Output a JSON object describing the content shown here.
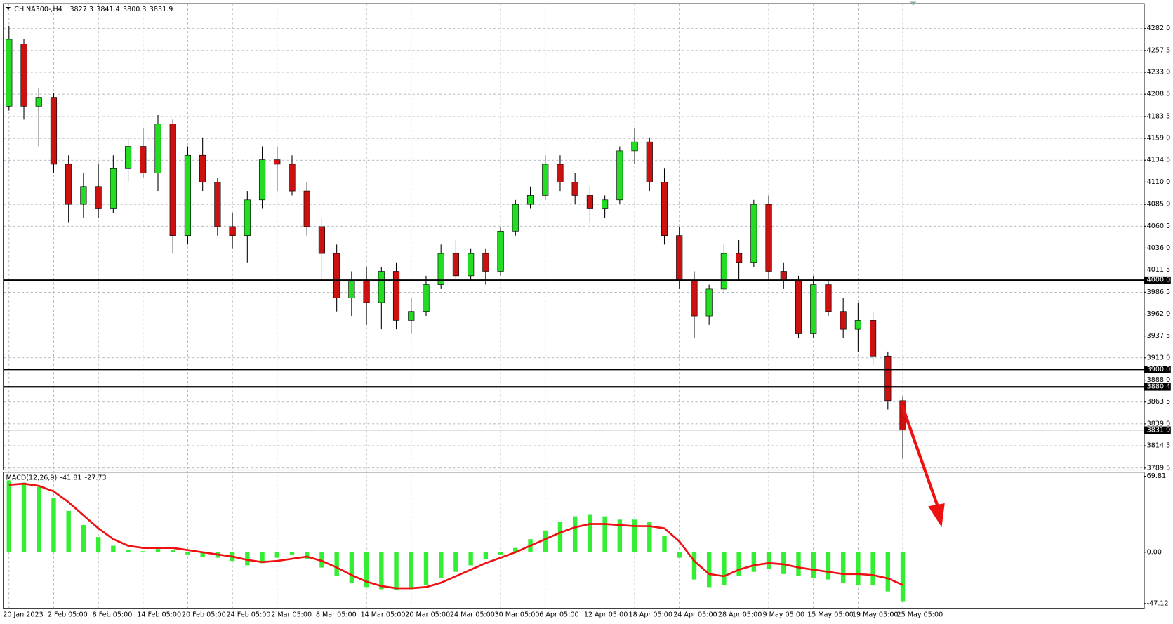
{
  "chart_data": [
    {
      "type": "candlestick",
      "title": "CHINA300-,H4",
      "header_values": [
        3827.3,
        3841.4,
        3800.3,
        3831.9
      ],
      "categories": [
        "20 Jan 2023",
        null,
        null,
        "2 Feb 05:00",
        null,
        null,
        "8 Feb 05:00",
        null,
        null,
        "14 Feb 05:00",
        null,
        null,
        "20 Feb 05:00",
        null,
        null,
        "24 Feb 05:00",
        null,
        null,
        "2 Mar 05:00",
        null,
        null,
        "8 Mar 05:00",
        null,
        null,
        "14 Mar 05:00",
        null,
        null,
        "20 Mar 05:00",
        null,
        null,
        "24 Mar 05:00",
        null,
        null,
        "30 Mar 05:00",
        null,
        null,
        "6 Apr 05:00",
        null,
        null,
        "12 Apr 05:00",
        null,
        null,
        "18 Apr 05:00",
        null,
        null,
        "24 Apr 05:00",
        null,
        null,
        "28 Apr 05:00",
        null,
        null,
        "9 May 05:00",
        null,
        null,
        "15 May 05:00",
        null,
        null,
        "19 May 05:00",
        null,
        null,
        "25 May 05:00"
      ],
      "open": [
        4195,
        4265,
        4195,
        4205,
        4130,
        4085,
        4105,
        4080,
        4125,
        4150,
        4120,
        4175,
        4050,
        4140,
        4110,
        4060,
        4050,
        4090,
        4135,
        4130,
        4100,
        4060,
        4030,
        3980,
        4000,
        3975,
        4010,
        3955,
        3965,
        3995,
        4030,
        4005,
        4030,
        4010,
        4055,
        4085,
        4095,
        4130,
        4110,
        4095,
        4080,
        4090,
        4145,
        4155,
        4110,
        4050,
        4000,
        3960,
        3990,
        4030,
        4020,
        4085,
        4010,
        4000,
        3940,
        3995,
        3965,
        3945,
        3955,
        3915,
        3865
      ],
      "high": [
        4285,
        4270,
        4215,
        4210,
        4140,
        4120,
        4130,
        4140,
        4160,
        4170,
        4185,
        4180,
        4150,
        4160,
        4115,
        4075,
        4100,
        4150,
        4150,
        4140,
        4110,
        4070,
        4040,
        4010,
        4015,
        4015,
        4020,
        3980,
        4005,
        4040,
        4045,
        4035,
        4035,
        4060,
        4090,
        4105,
        4140,
        4140,
        4120,
        4105,
        4095,
        4150,
        4170,
        4160,
        4125,
        4060,
        4010,
        3995,
        4040,
        4045,
        4090,
        4095,
        4020,
        4005,
        4005,
        4000,
        3980,
        3975,
        3965,
        3920,
        3870
      ],
      "low": [
        4190,
        4180,
        4150,
        4120,
        4065,
        4070,
        4070,
        4075,
        4110,
        4115,
        4100,
        4030,
        4040,
        4100,
        4050,
        4035,
        4020,
        4080,
        4100,
        4095,
        4050,
        4000,
        3965,
        3960,
        3950,
        3945,
        3945,
        3940,
        3960,
        3990,
        4000,
        4000,
        3995,
        4005,
        4050,
        4080,
        4090,
        4100,
        4085,
        4065,
        4070,
        4085,
        4130,
        4100,
        4040,
        3990,
        3935,
        3950,
        3985,
        4000,
        4015,
        4000,
        3990,
        3935,
        3935,
        3960,
        3935,
        3920,
        3905,
        3855,
        3800
      ],
      "close": [
        4270,
        4195,
        4205,
        4130,
        4085,
        4105,
        4080,
        4125,
        4150,
        4120,
        4175,
        4050,
        4140,
        4110,
        4060,
        4050,
        4090,
        4135,
        4130,
        4100,
        4060,
        4030,
        3980,
        4000,
        3975,
        4010,
        3955,
        3965,
        3995,
        4030,
        4005,
        4030,
        4010,
        4055,
        4085,
        4095,
        4130,
        4110,
        4095,
        4080,
        4090,
        4145,
        4155,
        4110,
        4050,
        4000,
        3960,
        3990,
        4030,
        4020,
        4085,
        4010,
        4000,
        3940,
        3995,
        3965,
        3945,
        3955,
        3915,
        3865,
        3832
      ],
      "ylim": [
        3787.8,
        4306.2
      ],
      "yticks": [
        {
          "value": 4282,
          "label": "4282.0"
        },
        {
          "value": 4257.5,
          "label": "4257.5"
        },
        {
          "value": 4233,
          "label": "4233.0"
        },
        {
          "value": 4208.5,
          "label": "4208.5"
        },
        {
          "value": 4183.5,
          "label": "4183.5"
        },
        {
          "value": 4159,
          "label": "4159.0"
        },
        {
          "value": 4134.5,
          "label": "4134.5"
        },
        {
          "value": 4110,
          "label": "4110.0"
        },
        {
          "value": 4085,
          "label": "4085.0"
        },
        {
          "value": 4060.5,
          "label": "4060.5"
        },
        {
          "value": 4036,
          "label": "4036.0"
        },
        {
          "value": 4011.5,
          "label": "4011.5"
        },
        {
          "value": 3986.5,
          "label": "3986.5"
        },
        {
          "value": 3962,
          "label": "3962.0"
        },
        {
          "value": 3937.5,
          "label": "3937.5"
        },
        {
          "value": 3913,
          "label": "3913.0"
        },
        {
          "value": 3888,
          "label": "3888.0"
        },
        {
          "value": 3863.5,
          "label": "3863.5"
        },
        {
          "value": 3839,
          "label": "3839.0"
        },
        {
          "value": 3814.5,
          "label": "3814.5"
        },
        {
          "value": 3789.5,
          "label": "3789.5"
        }
      ],
      "levels": [
        {
          "value": 4000,
          "label": "4000.0"
        },
        {
          "value": 3900,
          "label": "3900.0"
        },
        {
          "value": 3880.4,
          "label": "3880.4"
        }
      ],
      "last_price": {
        "value": 3831.9,
        "label": "3831.9"
      },
      "colors": {
        "up": "#22dd22",
        "down": "#cc1111"
      },
      "grid": true
    },
    {
      "type": "macd",
      "title": "MACD(12,26,9)",
      "header_values": [
        -41.81,
        -27.73
      ],
      "histogram": {
        "color": "#33ee33",
        "values": [
          66,
          64,
          60,
          50,
          38,
          25,
          14,
          6,
          2,
          1,
          3,
          2,
          -2,
          -4,
          -5,
          -8,
          -12,
          -10,
          -5,
          -2,
          -6,
          -14,
          -22,
          -28,
          -32,
          -34,
          -35,
          -34,
          -30,
          -24,
          -18,
          -12,
          -6,
          -2,
          4,
          12,
          20,
          28,
          33,
          35,
          33,
          30,
          30,
          28,
          15,
          -5,
          -25,
          -32,
          -30,
          -22,
          -18,
          -15,
          -20,
          -22,
          -24,
          -25,
          -28,
          -30,
          -30,
          -36,
          -45
        ]
      },
      "signal": {
        "color": "#ee1111",
        "values": [
          62,
          63,
          61,
          56,
          46,
          34,
          22,
          12,
          6,
          4,
          4,
          4,
          2,
          0,
          -2,
          -4,
          -7,
          -9,
          -8,
          -6,
          -4,
          -8,
          -14,
          -21,
          -27,
          -31,
          -33,
          -33,
          -32,
          -28,
          -22,
          -16,
          -10,
          -5,
          0,
          6,
          12,
          18,
          23,
          26,
          26,
          25,
          24,
          24,
          22,
          10,
          -8,
          -20,
          -22,
          -16,
          -12,
          -10,
          -11,
          -14,
          -16,
          -18,
          -20,
          -20,
          -21,
          -24,
          -30
        ]
      },
      "ylim": [
        -47.12,
        69.81
      ],
      "yticks": [
        69.81,
        {
          "value": 0,
          "label": "0.00"
        },
        -47.12
      ]
    }
  ]
}
